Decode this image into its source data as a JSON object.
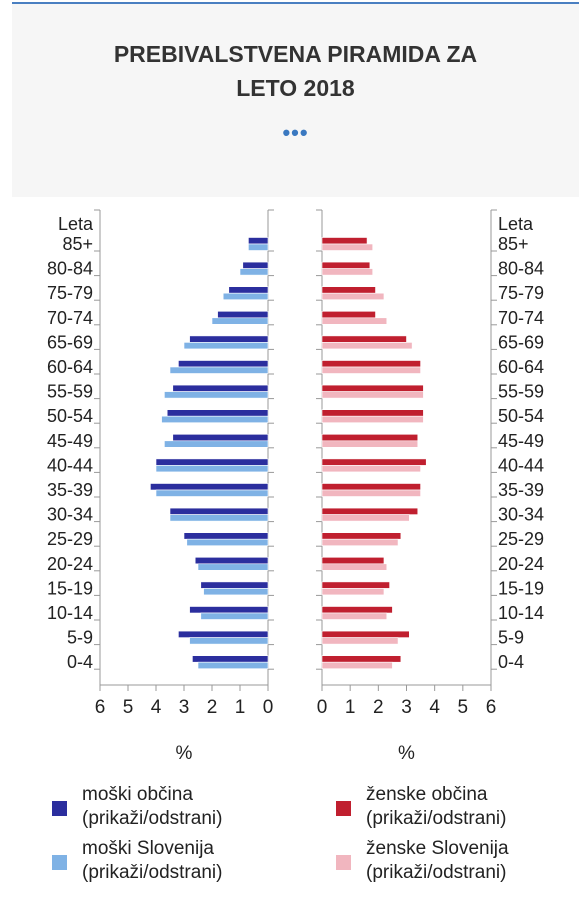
{
  "header": {
    "title_line1": "PREBIVALSTVENA PIRAMIDA ZA",
    "title_line2": "LETO 2018",
    "more_icon": "ellipsis-icon",
    "more_glyph": "•••"
  },
  "chart_data": {
    "type": "bar",
    "orientation": "population-pyramid",
    "title": "PREBIVALSTVENA PIRAMIDA ZA LETO 2018",
    "axis_category_label": "Leta",
    "categories": [
      "85+",
      "80-84",
      "75-79",
      "70-74",
      "65-69",
      "60-64",
      "55-59",
      "50-54",
      "45-49",
      "40-44",
      "35-39",
      "30-34",
      "25-29",
      "20-24",
      "15-19",
      "10-14",
      "5-9",
      "0-4"
    ],
    "xlabel_left": "%",
    "xlabel_right": "%",
    "xticks": [
      "0",
      "1",
      "2",
      "3",
      "4",
      "5",
      "6"
    ],
    "xlim": [
      0,
      6
    ],
    "series": [
      {
        "name": "moški občina",
        "side": "left",
        "color": "#2b2e9e",
        "values": [
          0.7,
          0.9,
          1.4,
          1.8,
          2.8,
          3.2,
          3.4,
          3.6,
          3.4,
          4.0,
          4.2,
          3.5,
          3.0,
          2.6,
          2.4,
          2.8,
          3.2,
          2.7
        ]
      },
      {
        "name": "moški Slovenija",
        "side": "left",
        "color": "#7fb2e5",
        "values": [
          0.7,
          1.0,
          1.6,
          2.0,
          3.0,
          3.5,
          3.7,
          3.8,
          3.7,
          4.0,
          4.0,
          3.5,
          2.9,
          2.5,
          2.3,
          2.4,
          2.8,
          2.5
        ]
      },
      {
        "name": "ženske občina",
        "side": "right",
        "color": "#c01f2f",
        "values": [
          1.6,
          1.7,
          1.9,
          1.9,
          3.0,
          3.5,
          3.6,
          3.6,
          3.4,
          3.7,
          3.5,
          3.4,
          2.8,
          2.2,
          2.4,
          2.5,
          3.1,
          2.8
        ]
      },
      {
        "name": "ženske Slovenija",
        "side": "right",
        "color": "#f1b6bf",
        "values": [
          1.8,
          1.8,
          2.2,
          2.3,
          3.2,
          3.5,
          3.6,
          3.6,
          3.4,
          3.5,
          3.5,
          3.1,
          2.7,
          2.3,
          2.2,
          2.3,
          2.7,
          2.5
        ]
      }
    ],
    "grid": false
  },
  "legend": {
    "items": [
      {
        "name": "moški občina",
        "action": "(prikaži/odstrani)",
        "color": "#2b2e9e"
      },
      {
        "name": "ženske občina",
        "action": "(prikaži/odstrani)",
        "color": "#c01f2f"
      },
      {
        "name": "moški Slovenija",
        "action": "(prikaži/odstrani)",
        "color": "#7fb2e5"
      },
      {
        "name": "ženske Slovenija",
        "action": "(prikaži/odstrani)",
        "color": "#f1b6bf"
      }
    ]
  }
}
